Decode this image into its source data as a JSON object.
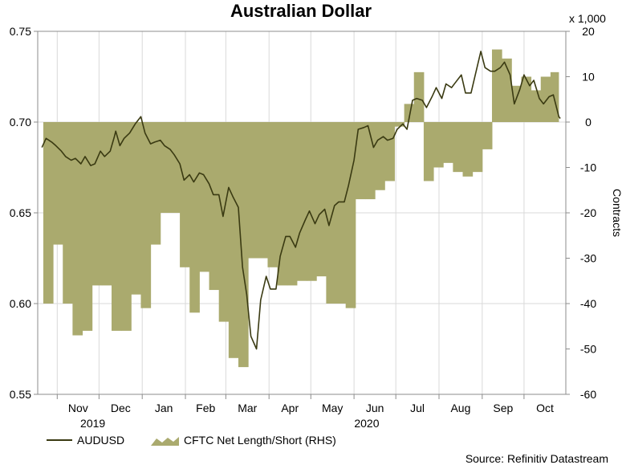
{
  "chart_data": {
    "type": "line",
    "title": "Australian Dollar",
    "secondary_axis_multiplier": "x 1,000",
    "y2label": "Contracts",
    "ylim": [
      0.55,
      0.75
    ],
    "y2lim": [
      -60,
      20
    ],
    "y_ticks": [
      "0.75",
      "0.70",
      "0.65",
      "0.60",
      "0.55"
    ],
    "y2_ticks": [
      "20",
      "10",
      "0",
      "-10",
      "-20",
      "-30",
      "-40",
      "-50",
      "-60"
    ],
    "x_month_labels": [
      "Nov",
      "Dec",
      "Jan",
      "Feb",
      "Mar",
      "Apr",
      "May",
      "Jun",
      "Jul",
      "Aug",
      "Sep",
      "Oct"
    ],
    "x_year_labels": [
      "2019",
      "2020"
    ],
    "source": "Source: Refinitiv Datastream",
    "grid": true,
    "legend_position": "bottom",
    "colors": {
      "audusd": "#3a3a12",
      "cftc_fill": "#aaaa6e"
    },
    "series": [
      {
        "name": "AUDUSD",
        "kind": "line",
        "axis": "left",
        "x": [
          "2019-10-21",
          "2019-10-24",
          "2019-10-28",
          "2019-10-31",
          "2019-11-04",
          "2019-11-07",
          "2019-11-11",
          "2019-11-14",
          "2019-11-18",
          "2019-11-21",
          "2019-11-25",
          "2019-11-28",
          "2019-12-02",
          "2019-12-05",
          "2019-12-09",
          "2019-12-12",
          "2019-12-13",
          "2019-12-16",
          "2019-12-19",
          "2019-12-23",
          "2019-12-27",
          "2019-12-31",
          "2020-01-03",
          "2020-01-07",
          "2020-01-10",
          "2020-01-14",
          "2020-01-17",
          "2020-01-21",
          "2020-01-24",
          "2020-01-28",
          "2020-01-31",
          "2020-02-04",
          "2020-02-07",
          "2020-02-11",
          "2020-02-14",
          "2020-02-18",
          "2020-02-21",
          "2020-02-25",
          "2020-02-28",
          "2020-03-03",
          "2020-03-06",
          "2020-03-10",
          "2020-03-13",
          "2020-03-16",
          "2020-03-19",
          "2020-03-23",
          "2020-03-26",
          "2020-03-30",
          "2020-04-02",
          "2020-04-06",
          "2020-04-09",
          "2020-04-13",
          "2020-04-16",
          "2020-04-20",
          "2020-04-23",
          "2020-04-27",
          "2020-04-30",
          "2020-05-04",
          "2020-05-07",
          "2020-05-11",
          "2020-05-14",
          "2020-05-18",
          "2020-05-21",
          "2020-05-25",
          "2020-05-28",
          "2020-06-01",
          "2020-06-04",
          "2020-06-08",
          "2020-06-11",
          "2020-06-15",
          "2020-06-18",
          "2020-06-22",
          "2020-06-25",
          "2020-06-29",
          "2020-07-02",
          "2020-07-06",
          "2020-07-09",
          "2020-07-13",
          "2020-07-16",
          "2020-07-20",
          "2020-07-23",
          "2020-07-27",
          "2020-07-30",
          "2020-08-03",
          "2020-08-06",
          "2020-08-10",
          "2020-08-13",
          "2020-08-17",
          "2020-08-20",
          "2020-08-24",
          "2020-08-27",
          "2020-08-31",
          "2020-09-03",
          "2020-09-07",
          "2020-09-10",
          "2020-09-14",
          "2020-09-17",
          "2020-09-21",
          "2020-09-24",
          "2020-09-28",
          "2020-10-01",
          "2020-10-05",
          "2020-10-08",
          "2020-10-12",
          "2020-10-15",
          "2020-10-19",
          "2020-10-22",
          "2020-10-26",
          "2020-10-27"
        ],
        "values": [
          0.686,
          0.691,
          0.689,
          0.687,
          0.684,
          0.681,
          0.679,
          0.68,
          0.677,
          0.681,
          0.676,
          0.677,
          0.684,
          0.681,
          0.684,
          0.692,
          0.695,
          0.687,
          0.691,
          0.694,
          0.699,
          0.703,
          0.694,
          0.688,
          0.689,
          0.69,
          0.687,
          0.685,
          0.682,
          0.677,
          0.668,
          0.671,
          0.667,
          0.672,
          0.671,
          0.666,
          0.66,
          0.66,
          0.648,
          0.664,
          0.659,
          0.653,
          0.62,
          0.605,
          0.582,
          0.575,
          0.602,
          0.615,
          0.608,
          0.608,
          0.626,
          0.637,
          0.637,
          0.631,
          0.639,
          0.646,
          0.651,
          0.644,
          0.649,
          0.652,
          0.643,
          0.654,
          0.656,
          0.656,
          0.665,
          0.679,
          0.696,
          0.697,
          0.698,
          0.686,
          0.69,
          0.692,
          0.69,
          0.691,
          0.696,
          0.699,
          0.696,
          0.712,
          0.713,
          0.712,
          0.708,
          0.714,
          0.719,
          0.713,
          0.721,
          0.719,
          0.722,
          0.726,
          0.716,
          0.716,
          0.726,
          0.739,
          0.73,
          0.728,
          0.728,
          0.73,
          0.733,
          0.726,
          0.71,
          0.718,
          0.726,
          0.72,
          0.723,
          0.713,
          0.71,
          0.714,
          0.715,
          0.703,
          0.702
        ]
      },
      {
        "name": "CFTC Net Length/Short (RHS)",
        "kind": "area",
        "axis": "right",
        "x": [
          "2019-10-22",
          "2019-10-29",
          "2019-11-05",
          "2019-11-12",
          "2019-11-19",
          "2019-11-26",
          "2019-12-03",
          "2019-12-10",
          "2019-12-17",
          "2019-12-24",
          "2019-12-31",
          "2020-01-07",
          "2020-01-14",
          "2020-01-21",
          "2020-01-28",
          "2020-02-04",
          "2020-02-11",
          "2020-02-18",
          "2020-02-25",
          "2020-03-03",
          "2020-03-10",
          "2020-03-17",
          "2020-03-24",
          "2020-03-31",
          "2020-04-07",
          "2020-04-14",
          "2020-04-21",
          "2020-04-28",
          "2020-05-05",
          "2020-05-12",
          "2020-05-19",
          "2020-05-26",
          "2020-06-02",
          "2020-06-09",
          "2020-06-16",
          "2020-06-23",
          "2020-06-30",
          "2020-07-07",
          "2020-07-14",
          "2020-07-21",
          "2020-07-28",
          "2020-08-04",
          "2020-08-11",
          "2020-08-18",
          "2020-08-25",
          "2020-09-01",
          "2020-09-08",
          "2020-09-15",
          "2020-09-22",
          "2020-09-29",
          "2020-10-06",
          "2020-10-13",
          "2020-10-20"
        ],
        "values": [
          -40,
          -27,
          -40,
          -47,
          -46,
          -36,
          -36,
          -46,
          -46,
          -38,
          -41,
          -27,
          -20,
          -20,
          -32,
          -42,
          -33,
          -37,
          -44,
          -52,
          -54,
          -30,
          -30,
          -32,
          -36,
          -36,
          -35,
          -35,
          -34,
          -40,
          -40,
          -41,
          -17,
          -17,
          -15,
          -13,
          -1,
          4,
          11,
          -13,
          -10,
          -9,
          -11,
          -12,
          -11,
          -6,
          16,
          14,
          8,
          10,
          7,
          10,
          11
        ]
      }
    ]
  }
}
